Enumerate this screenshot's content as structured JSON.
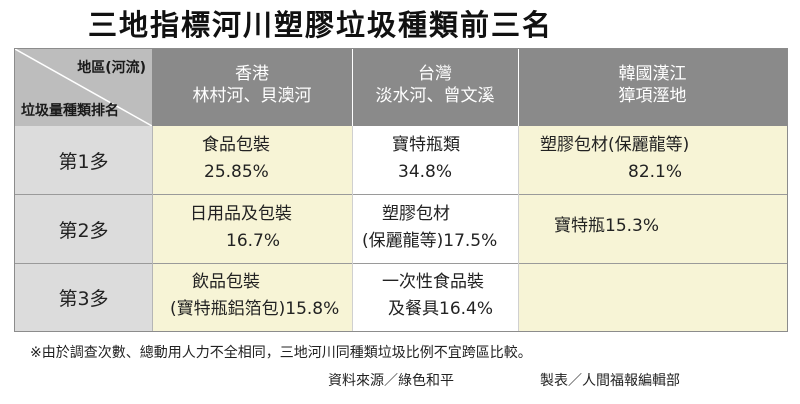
{
  "title": "三地指標河川塑膠垃圾種類前三名",
  "header": {
    "corner_top": "地區(河流)",
    "corner_bottom": "垃圾量種類排名",
    "regions": [
      {
        "name": "香港",
        "rivers": "林村河、貝澳河"
      },
      {
        "name": "台灣",
        "rivers": "淡水河、曾文溪"
      },
      {
        "name": "韓國漢江",
        "rivers": "獐項溼地"
      }
    ]
  },
  "rows": [
    {
      "rank": "第1多",
      "cells": [
        {
          "line1": "食品包裝",
          "line2": "25.85%"
        },
        {
          "line1": "寶特瓶類",
          "line2": "34.8%"
        },
        {
          "line1": "塑膠包材(保麗龍等)",
          "line2": "82.1%"
        }
      ]
    },
    {
      "rank": "第2多",
      "cells": [
        {
          "line1": "日用品及包裝",
          "line2": "16.7%"
        },
        {
          "line1": "塑膠包材",
          "line2": "(保麗龍等)17.5%"
        },
        {
          "line1": "寶特瓶15.3%",
          "line2": ""
        }
      ]
    },
    {
      "rank": "第3多",
      "cells": [
        {
          "line1": "飲品包裝",
          "line2": "(寶特瓶鋁箔包)15.8%"
        },
        {
          "line1": "一次性食品裝",
          "line2": "及餐具16.4%"
        },
        {
          "line1": "",
          "line2": ""
        }
      ]
    }
  ],
  "footnote": "※由於調查次數、總動用人力不全相同，三地河川同種類垃圾比例不宜跨區比較。",
  "source": "資料來源／綠色和平",
  "credit": "製表／人間福報編輯部"
}
